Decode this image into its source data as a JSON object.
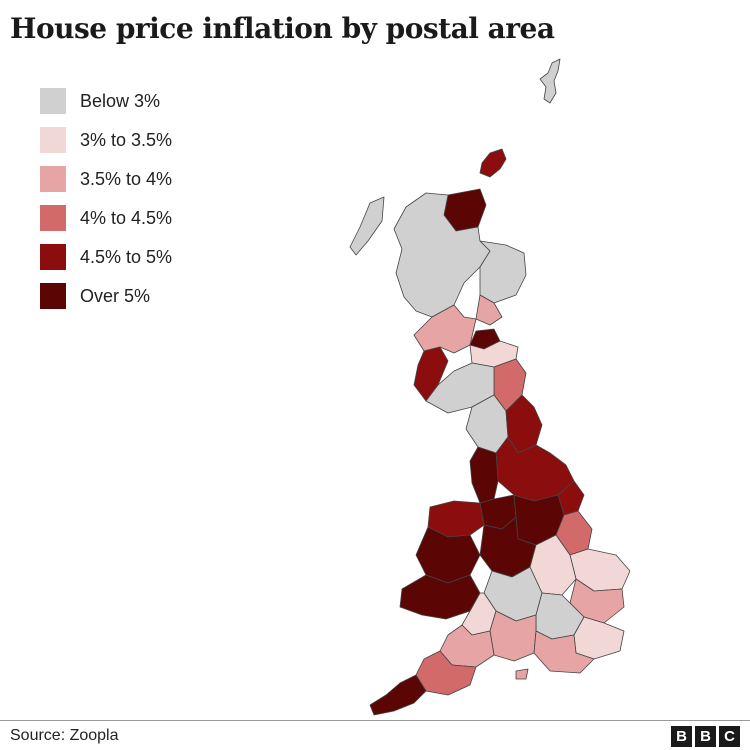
{
  "title": "House price inflation by postal area",
  "legend": [
    {
      "label": "Below 3%",
      "color": "#d0d0d0"
    },
    {
      "label": "3% to 3.5%",
      "color": "#f2d7d7"
    },
    {
      "label": "3.5% to 4%",
      "color": "#e6a4a4"
    },
    {
      "label": "4% to 4.5%",
      "color": "#d36a6a"
    },
    {
      "label": "4.5% to 5%",
      "color": "#8b0d0d"
    },
    {
      "label": "Over 5%",
      "color": "#5c0505"
    }
  ],
  "source": "Source: Zoopla",
  "logo": [
    "B",
    "B",
    "C"
  ],
  "map_regions": [
    {
      "name": "north-scotland",
      "band": 0
    },
    {
      "name": "north-east-scotland",
      "band": 0
    },
    {
      "name": "caithness",
      "band": 5
    },
    {
      "name": "orkney",
      "band": 4
    },
    {
      "name": "shetland",
      "band": 0
    },
    {
      "name": "dundee",
      "band": 2
    },
    {
      "name": "fife",
      "band": 5
    },
    {
      "name": "edinburgh",
      "band": 1
    },
    {
      "name": "glasgow",
      "band": 2
    },
    {
      "name": "ayrshire",
      "band": 4
    },
    {
      "name": "borders",
      "band": 3
    },
    {
      "name": "dumfries",
      "band": 0
    },
    {
      "name": "cumbria",
      "band": 0
    },
    {
      "name": "north-east-england",
      "band": 4
    },
    {
      "name": "yorkshire",
      "band": 4
    },
    {
      "name": "hull",
      "band": 4
    },
    {
      "name": "lancashire",
      "band": 5
    },
    {
      "name": "manchester",
      "band": 5
    },
    {
      "name": "lincolnshire",
      "band": 3
    },
    {
      "name": "east-midlands",
      "band": 5
    },
    {
      "name": "west-midlands",
      "band": 5
    },
    {
      "name": "north-wales",
      "band": 4
    },
    {
      "name": "mid-wales",
      "band": 5
    },
    {
      "name": "south-wales",
      "band": 5
    },
    {
      "name": "norfolk",
      "band": 1
    },
    {
      "name": "suffolk",
      "band": 2
    },
    {
      "name": "cambridge",
      "band": 1
    },
    {
      "name": "oxford",
      "band": 0
    },
    {
      "name": "london",
      "band": 0
    },
    {
      "name": "kent",
      "band": 1
    },
    {
      "name": "sussex",
      "band": 2
    },
    {
      "name": "hampshire",
      "band": 2
    },
    {
      "name": "bristol",
      "band": 1
    },
    {
      "name": "somerset",
      "band": 2
    },
    {
      "name": "devon",
      "band": 3
    },
    {
      "name": "cornwall",
      "band": 5
    }
  ]
}
